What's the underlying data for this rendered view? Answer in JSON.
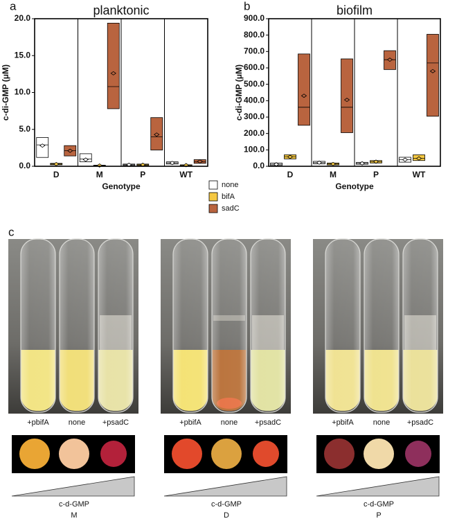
{
  "chart_data": [
    {
      "type": "box",
      "panel": "a",
      "title": "planktonic",
      "y_label": "c-di-GMP (μM)",
      "x_label": "Genotype",
      "categories": [
        "D",
        "M",
        "P",
        "WT"
      ],
      "ylim": [
        0,
        20
      ],
      "yticks": [
        {
          "value": 0,
          "label": "0.0"
        },
        {
          "value": 5,
          "label": "5.0"
        },
        {
          "value": 10,
          "label": "10.0"
        },
        {
          "value": 15,
          "label": "15.0"
        },
        {
          "value": 20,
          "label": "20.0"
        }
      ],
      "series": [
        {
          "name": "none",
          "color": "#ffffff",
          "values": [
            {
              "low": 1.2,
              "median": 2.9,
              "high": 3.9,
              "mean": 2.8
            },
            {
              "low": 0.6,
              "median": 1.0,
              "high": 1.7,
              "mean": 0.9
            },
            {
              "low": 0.1,
              "median": 0.2,
              "high": 0.3,
              "mean": 0.2
            },
            {
              "low": 0.3,
              "median": 0.45,
              "high": 0.6,
              "mean": 0.45
            }
          ]
        },
        {
          "name": "bifA",
          "color": "#f5c842",
          "values": [
            {
              "low": 0.2,
              "median": 0.3,
              "high": 0.4,
              "mean": 0.3
            },
            {
              "low": 0.05,
              "median": 0.1,
              "high": 0.15,
              "mean": 0.1
            },
            {
              "low": 0.1,
              "median": 0.2,
              "high": 0.3,
              "mean": 0.2
            },
            {
              "low": 0.1,
              "median": 0.15,
              "high": 0.2,
              "mean": 0.15
            }
          ]
        },
        {
          "name": "sadC",
          "color": "#b9643f",
          "values": [
            {
              "low": 1.4,
              "median": 2.1,
              "high": 2.8,
              "mean": 2.1
            },
            {
              "low": 7.8,
              "median": 10.8,
              "high": 19.4,
              "mean": 12.6
            },
            {
              "low": 2.2,
              "median": 4.0,
              "high": 6.6,
              "mean": 4.3
            },
            {
              "low": 0.4,
              "median": 0.6,
              "high": 0.9,
              "mean": 0.65
            }
          ]
        }
      ]
    },
    {
      "type": "box",
      "panel": "b",
      "title": "biofilm",
      "y_label": "c-di-GMP (μM)",
      "x_label": "Genotype",
      "categories": [
        "D",
        "M",
        "P",
        "WT"
      ],
      "ylim": [
        0,
        900
      ],
      "yticks": [
        {
          "value": 0,
          "label": "0.0"
        },
        {
          "value": 100,
          "label": "100.0"
        },
        {
          "value": 200,
          "label": "200.0"
        },
        {
          "value": 300,
          "label": "300.0"
        },
        {
          "value": 400,
          "label": "400.0"
        },
        {
          "value": 500,
          "label": "500.0"
        },
        {
          "value": 600,
          "label": "600.0"
        },
        {
          "value": 700,
          "label": "700.0"
        },
        {
          "value": 800,
          "label": "800.0"
        },
        {
          "value": 900,
          "label": "900.0"
        }
      ],
      "series": [
        {
          "name": "none",
          "color": "#ffffff",
          "values": [
            {
              "low": 5,
              "median": 12,
              "high": 20,
              "mean": 12
            },
            {
              "low": 15,
              "median": 22,
              "high": 30,
              "mean": 22
            },
            {
              "low": 12,
              "median": 18,
              "high": 24,
              "mean": 18
            },
            {
              "low": 25,
              "median": 40,
              "high": 55,
              "mean": 40
            }
          ]
        },
        {
          "name": "bifA",
          "color": "#f5c842",
          "values": [
            {
              "low": 45,
              "median": 58,
              "high": 70,
              "mean": 57
            },
            {
              "low": 8,
              "median": 14,
              "high": 20,
              "mean": 14
            },
            {
              "low": 20,
              "median": 28,
              "high": 35,
              "mean": 28
            },
            {
              "low": 35,
              "median": 48,
              "high": 70,
              "mean": 48
            }
          ]
        },
        {
          "name": "sadC",
          "color": "#b9643f",
          "values": [
            {
              "low": 250,
              "median": 360,
              "high": 685,
              "mean": 430
            },
            {
              "low": 205,
              "median": 360,
              "high": 655,
              "mean": 405
            },
            {
              "low": 590,
              "median": 650,
              "high": 705,
              "mean": 650
            },
            {
              "low": 305,
              "median": 630,
              "high": 805,
              "mean": 580
            }
          ]
        }
      ]
    }
  ],
  "panel_c": {
    "label": "c",
    "groups": [
      {
        "name": "M",
        "tubes": [
          "+pbifA",
          "none",
          "+psadC"
        ],
        "gradient_label": "c-d-GMP"
      },
      {
        "name": "D",
        "tubes": [
          "+pbifA",
          "none",
          "+psadC"
        ],
        "gradient_label": "c-d-GMP"
      },
      {
        "name": "P",
        "tubes": [
          "+pbifA",
          "none",
          "+psadC"
        ],
        "gradient_label": "c-d-GMP"
      }
    ]
  }
}
